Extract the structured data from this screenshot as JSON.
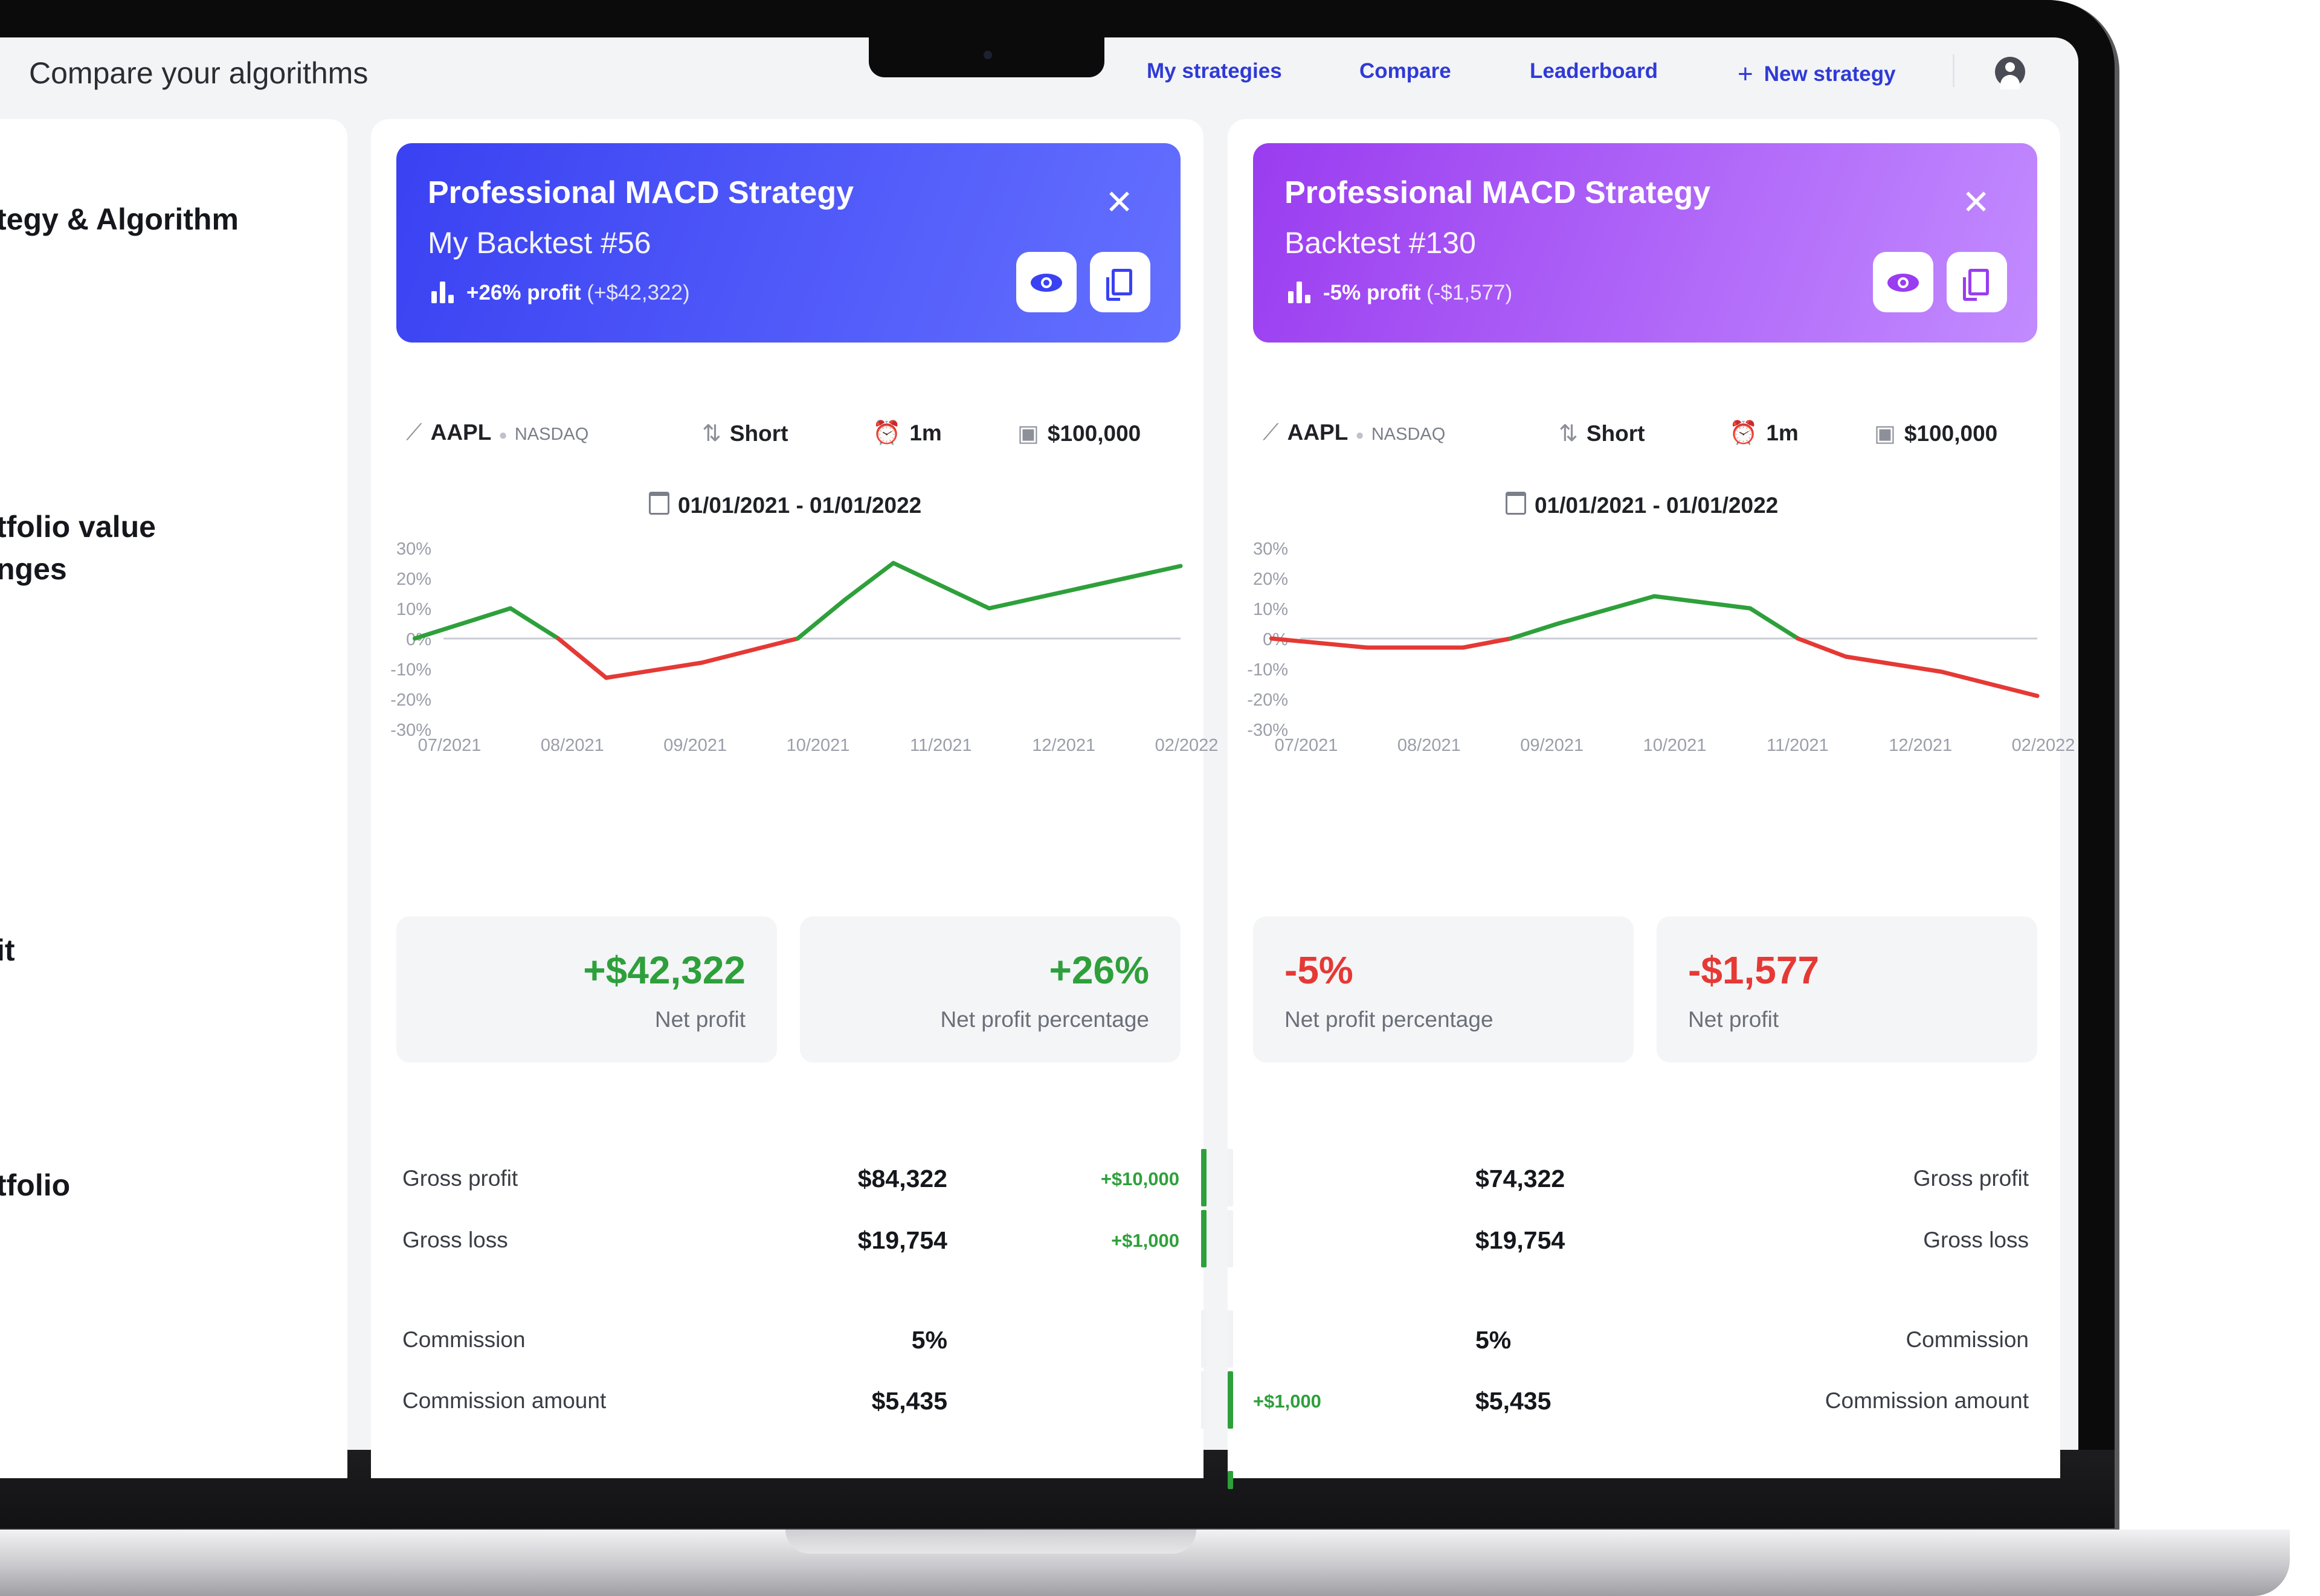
{
  "app": {
    "title": "Compare your algorithms"
  },
  "nav": {
    "my_strategies": "My strategies",
    "compare": "Compare",
    "leaderboard": "Leaderboard",
    "new_strategy": "New strategy"
  },
  "left_labels": [
    "tegy & Algorithm",
    "tfolio value",
    "nges",
    "it",
    "tfolio"
  ],
  "colors": {
    "accent": "#2f3ad6",
    "blue": "#3a41f2",
    "purple": "#9a3cf0",
    "green": "#2ea03b",
    "red": "#e53935"
  },
  "strategies": [
    {
      "title": "Professional MACD Strategy",
      "subtitle": "My Backtest #56",
      "profit_label": "+26% profit",
      "profit_amount": "(+$42,322)",
      "symbol": "AAPL",
      "exchange": "NASDAQ",
      "position": "Short",
      "interval": "1m",
      "capital": "$100,000",
      "date_range": "01/01/2021 - 01/01/2022",
      "stats": [
        {
          "value": "+$42,322",
          "label": "Net profit",
          "tone": "green"
        },
        {
          "value": "+26%",
          "label": "Net profit percentage",
          "tone": "green"
        }
      ],
      "rows": [
        {
          "label": "Gross profit",
          "value": "$84,322",
          "diff": "+$10,000"
        },
        {
          "label": "Gross loss",
          "value": "$19,754",
          "diff": "+$1,000"
        },
        {
          "label": "Commission",
          "value": "5%",
          "diff": ""
        },
        {
          "label": "Commission amount",
          "value": "$5,435",
          "diff": ""
        }
      ]
    },
    {
      "title": "Professional MACD Strategy",
      "subtitle": "Backtest #130",
      "profit_label": "-5% profit",
      "profit_amount": "(-$1,577)",
      "symbol": "AAPL",
      "exchange": "NASDAQ",
      "position": "Short",
      "interval": "1m",
      "capital": "$100,000",
      "date_range": "01/01/2021 - 01/01/2022",
      "stats": [
        {
          "value": "-5%",
          "label": "Net profit percentage",
          "tone": "red"
        },
        {
          "value": "-$1,577",
          "label": "Net profit",
          "tone": "red"
        }
      ],
      "rows": [
        {
          "label": "Gross profit",
          "value": "$74,322",
          "diff": ""
        },
        {
          "label": "Gross loss",
          "value": "$19,754",
          "diff": ""
        },
        {
          "label": "Commission",
          "value": "5%",
          "diff": ""
        },
        {
          "label": "Commission amount",
          "value": "$5,435",
          "diff": "+$1,000"
        }
      ]
    }
  ],
  "chart_data": [
    {
      "type": "line",
      "x": [
        "06/2021",
        "07/2021",
        "07/2021",
        "08/2021",
        "09/2021",
        "10/2021",
        "10/2021",
        "11/2021",
        "12/2021",
        "02/2022"
      ],
      "values": [
        0,
        10,
        0,
        -13,
        -8,
        0,
        13,
        25,
        10,
        24
      ],
      "x_ticks": [
        "07/2021",
        "08/2021",
        "09/2021",
        "10/2021",
        "11/2021",
        "12/2021",
        "02/2022"
      ],
      "y_ticks": [
        "30%",
        "20%",
        "10%",
        "0%",
        "-10%",
        "-20%",
        "-30%"
      ],
      "ylim": [
        -30,
        30
      ],
      "colors": {
        "positive": "#2ea03b",
        "negative": "#e53935"
      },
      "grid": false
    },
    {
      "type": "line",
      "x": [
        "06/2021",
        "07/2021",
        "08/2021",
        "08/2021",
        "09/2021",
        "10/2021",
        "11/2021",
        "11/2021",
        "12/2021",
        "01/2022",
        "02/2022"
      ],
      "values": [
        0,
        -3,
        -3,
        0,
        5,
        14,
        10,
        0,
        -6,
        -11,
        -19
      ],
      "x_ticks": [
        "07/2021",
        "08/2021",
        "09/2021",
        "10/2021",
        "11/2021",
        "12/2021",
        "02/2022"
      ],
      "y_ticks": [
        "30%",
        "20%",
        "10%",
        "0%",
        "-10%",
        "-20%",
        "-30%"
      ],
      "ylim": [
        -30,
        30
      ],
      "colors": {
        "positive": "#2ea03b",
        "negative": "#e53935"
      },
      "grid": false
    }
  ]
}
